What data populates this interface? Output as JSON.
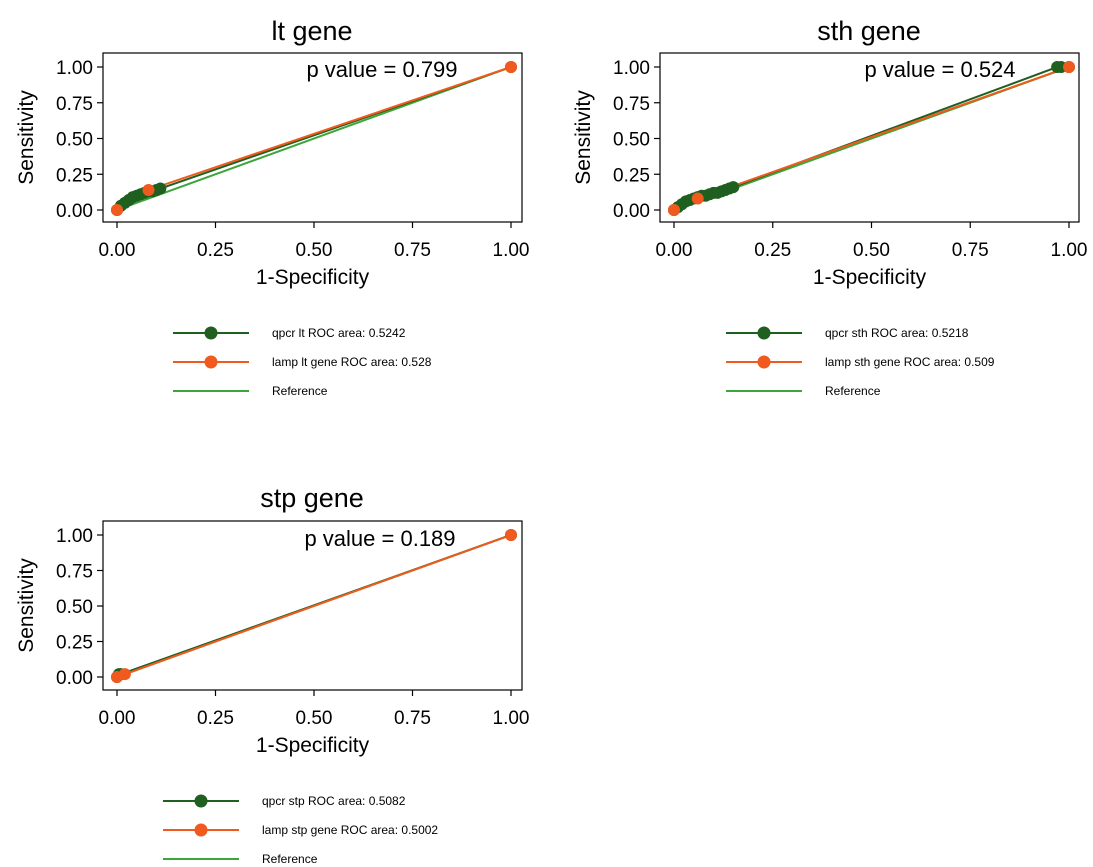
{
  "chart_data": [
    {
      "type": "line",
      "title": "lt gene",
      "xlabel": "1-Specificity",
      "ylabel": "Sensitivity",
      "xlim": [
        0,
        1
      ],
      "ylim": [
        0,
        1
      ],
      "xticks": [
        "0.00",
        "0.25",
        "0.50",
        "0.75",
        "1.00"
      ],
      "yticks": [
        "0.00",
        "0.25",
        "0.50",
        "0.75",
        "1.00"
      ],
      "annotation": "p value = 0.799",
      "series": [
        {
          "name": "qpcr lt ROC area: 0.5242",
          "color": "#1f5f1f",
          "marker": "circle",
          "x": [
            0,
            0.01,
            0.02,
            0.03,
            0.04,
            0.05,
            0.06,
            0.07,
            0.08,
            0.09,
            0.1,
            0.11,
            1.0
          ],
          "y": [
            0,
            0.03,
            0.05,
            0.07,
            0.09,
            0.1,
            0.11,
            0.12,
            0.13,
            0.13,
            0.14,
            0.15,
            1.0
          ]
        },
        {
          "name": "lamp lt gene ROC area: 0.528",
          "color": "#f05a1e",
          "marker": "circle",
          "x": [
            0,
            0.08,
            1.0
          ],
          "y": [
            0,
            0.14,
            1.0
          ]
        },
        {
          "name": "Reference",
          "color": "#3ca53c",
          "marker": "none",
          "x": [
            0,
            1
          ],
          "y": [
            0,
            1
          ]
        }
      ]
    },
    {
      "type": "line",
      "title": "sth gene",
      "xlabel": "1-Specificity",
      "ylabel": "Sensitivity",
      "xlim": [
        0,
        1
      ],
      "ylim": [
        0,
        1
      ],
      "xticks": [
        "0.00",
        "0.25",
        "0.50",
        "0.75",
        "1.00"
      ],
      "yticks": [
        "0.00",
        "0.25",
        "0.50",
        "0.75",
        "1.00"
      ],
      "annotation": "p value = 0.524",
      "series": [
        {
          "name": "qpcr sth ROC area: 0.5218",
          "color": "#1f5f1f",
          "marker": "circle",
          "x": [
            0,
            0.01,
            0.02,
            0.03,
            0.04,
            0.05,
            0.06,
            0.07,
            0.08,
            0.09,
            0.1,
            0.11,
            0.12,
            0.13,
            0.14,
            0.15,
            0.97,
            0.98,
            1.0
          ],
          "y": [
            0,
            0.02,
            0.04,
            0.06,
            0.07,
            0.08,
            0.09,
            0.1,
            0.1,
            0.11,
            0.12,
            0.12,
            0.13,
            0.14,
            0.15,
            0.16,
            1.0,
            1.0,
            1.0
          ]
        },
        {
          "name": "lamp sth gene ROC area: 0.509",
          "color": "#f05a1e",
          "marker": "circle",
          "x": [
            0,
            0.06,
            1.0
          ],
          "y": [
            0,
            0.08,
            1.0
          ]
        },
        {
          "name": "Reference",
          "color": "#3ca53c",
          "marker": "none",
          "x": [
            0,
            1
          ],
          "y": [
            0,
            1
          ]
        }
      ]
    },
    {
      "type": "line",
      "title": "stp gene",
      "xlabel": "1-Specificity",
      "ylabel": "Sensitivity",
      "xlim": [
        0,
        1
      ],
      "ylim": [
        0,
        1
      ],
      "xticks": [
        "0.00",
        "0.25",
        "0.50",
        "0.75",
        "1.00"
      ],
      "yticks": [
        "0.00",
        "0.25",
        "0.50",
        "0.75",
        "1.00"
      ],
      "annotation": "p value = 0.189",
      "series": [
        {
          "name": "qpcr stp ROC area: 0.5082",
          "color": "#1f5f1f",
          "marker": "circle",
          "x": [
            0,
            0.005,
            0.01,
            1.0
          ],
          "y": [
            0,
            0.02,
            0.02,
            1.0
          ]
        },
        {
          "name": "lamp stp gene ROC area: 0.5002",
          "color": "#f05a1e",
          "marker": "circle",
          "x": [
            0,
            0.02,
            1.0
          ],
          "y": [
            0,
            0.02,
            1.0
          ]
        },
        {
          "name": "Reference",
          "color": "#3ca53c",
          "marker": "none",
          "x": [
            0,
            1
          ],
          "y": [
            0,
            1
          ]
        }
      ]
    }
  ]
}
